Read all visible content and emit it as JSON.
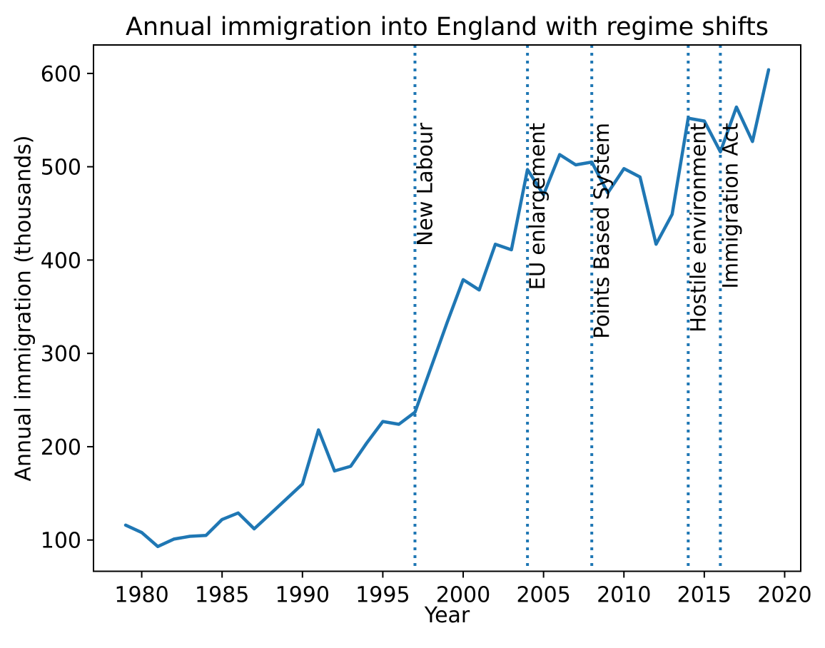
{
  "chart_data": {
    "type": "line",
    "title": "Annual immigration into England with regime shifts",
    "xlabel": "Year",
    "ylabel": "Annual immigration (thousands)",
    "x": [
      1979,
      1980,
      1981,
      1982,
      1983,
      1984,
      1985,
      1986,
      1987,
      1988,
      1989,
      1990,
      1991,
      1992,
      1993,
      1994,
      1995,
      1996,
      1997,
      1998,
      1999,
      2000,
      2001,
      2002,
      2003,
      2004,
      2005,
      2006,
      2007,
      2008,
      2009,
      2010,
      2011,
      2012,
      2013,
      2014,
      2015,
      2016,
      2017,
      2018,
      2019
    ],
    "values": [
      116,
      108,
      93,
      101,
      104,
      105,
      122,
      129,
      112,
      128,
      144,
      160,
      218,
      174,
      179,
      204,
      227,
      224,
      237,
      285,
      333,
      379,
      368,
      417,
      411,
      497,
      470,
      513,
      502,
      505,
      472,
      498,
      489,
      417,
      449,
      552,
      549,
      516,
      564,
      527,
      604
    ],
    "xlim": [
      1977,
      2021
    ],
    "ylim": [
      66.5,
      630.5
    ],
    "xticks": [
      1980,
      1985,
      1990,
      1995,
      2000,
      2005,
      2010,
      2015,
      2020
    ],
    "yticks": [
      100,
      200,
      300,
      400,
      500,
      600
    ],
    "grid": false,
    "legend": "none",
    "line_color": "#1f77b4",
    "axis_color": "#000000",
    "annotations": [
      {
        "x": 1997,
        "label": "New Labour",
        "slug": "new-labour"
      },
      {
        "x": 2004,
        "label": "EU enlargement",
        "slug": "eu-enlargement"
      },
      {
        "x": 2008,
        "label": "Points Based System",
        "slug": "points-based-system"
      },
      {
        "x": 2014,
        "label": "Hostile environment",
        "slug": "hostile-environment"
      },
      {
        "x": 2016,
        "label": "Immigration Act",
        "slug": "immigration-act"
      }
    ],
    "annotation_line_style": "dotted",
    "annotation_line_color": "#1f77b4"
  }
}
